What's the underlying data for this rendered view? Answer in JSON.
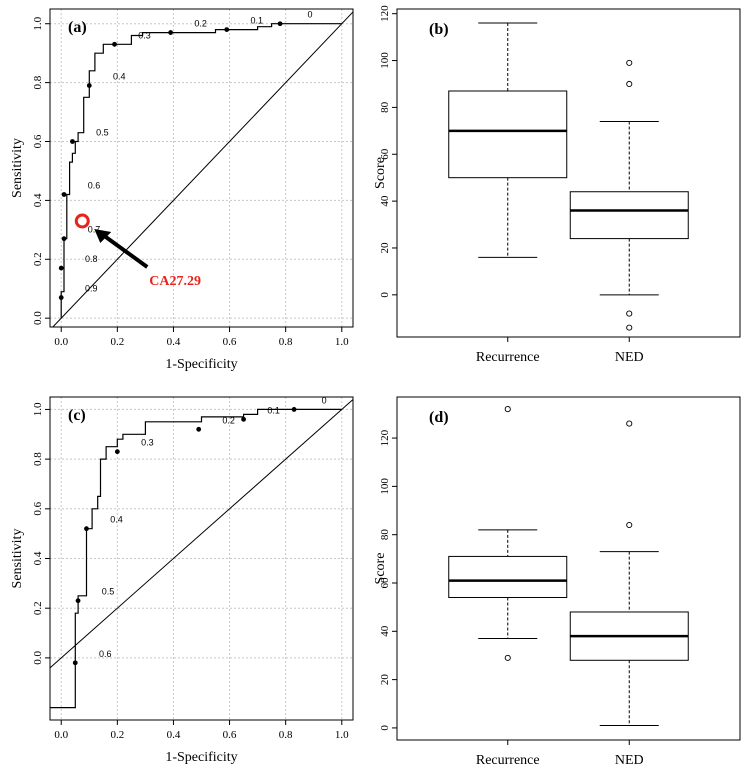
{
  "chart_data": [
    {
      "id": "a",
      "type": "line",
      "panel_label": "(a)",
      "xlabel": "1-Specificity",
      "ylabel": "Sensitivity",
      "xlim": [
        -0.04,
        1.04
      ],
      "ylim": [
        -0.03,
        1.05
      ],
      "xticks": [
        0.0,
        0.2,
        0.4,
        0.6,
        0.8,
        1.0
      ],
      "yticks": [
        0.0,
        0.2,
        0.4,
        0.6,
        0.8,
        1.0
      ],
      "xtick_labels": [
        "0.0",
        "0.2",
        "0.4",
        "0.6",
        "0.8",
        "1.0"
      ],
      "ytick_labels": [
        "0.0",
        "0.2",
        "0.4",
        "0.6",
        "0.8",
        "1.0"
      ],
      "grid": true,
      "roc": {
        "x": [
          0,
          0,
          0.01,
          0.01,
          0.02,
          0.02,
          0.03,
          0.03,
          0.04,
          0.04,
          0.05,
          0.05,
          0.06,
          0.06,
          0.08,
          0.08,
          0.1,
          0.1,
          0.12,
          0.12,
          0.15,
          0.15,
          0.25,
          0.25,
          0.29,
          0.29,
          0.55,
          0.55,
          0.7,
          0.7,
          0.75,
          0.75,
          0.95,
          0.95,
          1.0
        ],
        "y": [
          0,
          0.09,
          0.09,
          0.27,
          0.27,
          0.42,
          0.42,
          0.53,
          0.53,
          0.56,
          0.56,
          0.6,
          0.6,
          0.63,
          0.63,
          0.75,
          0.75,
          0.84,
          0.84,
          0.9,
          0.9,
          0.93,
          0.93,
          0.96,
          0.96,
          0.97,
          0.97,
          0.98,
          0.98,
          0.99,
          0.99,
          1.0,
          1.0,
          1.0,
          1.0
        ]
      },
      "threshold_points": [
        {
          "x": 0.0,
          "y": 0.07,
          "label": "0.9"
        },
        {
          "x": 0.0,
          "y": 0.17,
          "label": "0.8"
        },
        {
          "x": 0.01,
          "y": 0.27,
          "label": "0.7"
        },
        {
          "x": 0.01,
          "y": 0.42,
          "label": "0.6"
        },
        {
          "x": 0.04,
          "y": 0.6,
          "label": "0.5"
        },
        {
          "x": 0.1,
          "y": 0.79,
          "label": "0.4"
        },
        {
          "x": 0.19,
          "y": 0.93,
          "label": "0.3"
        },
        {
          "x": 0.39,
          "y": 0.97,
          "label": "0.2"
        },
        {
          "x": 0.59,
          "y": 0.98,
          "label": "0.1"
        },
        {
          "x": 0.78,
          "y": 1.0,
          "label": "0"
        }
      ],
      "annotation": {
        "text": "CA27.29",
        "x": 0.075,
        "y": 0.33,
        "color": "#e8231b"
      }
    },
    {
      "id": "b",
      "type": "boxplot",
      "panel_label": "(b)",
      "xlabel": "",
      "ylabel": "Score",
      "ylim": [
        -18,
        122
      ],
      "yticks": [
        0,
        20,
        40,
        60,
        80,
        100,
        120
      ],
      "ytick_labels": [
        "0",
        "20",
        "40",
        "60",
        "80",
        "100",
        "120"
      ],
      "categories": [
        "Recurrence",
        "NED"
      ],
      "boxes": [
        {
          "min": 16,
          "q1": 50,
          "median": 70,
          "q3": 87,
          "max": 116,
          "outliers": []
        },
        {
          "min": 0,
          "q1": 24,
          "median": 36,
          "q3": 44,
          "max": 74,
          "outliers": [
            99,
            90,
            -8,
            -14
          ]
        }
      ]
    },
    {
      "id": "c",
      "type": "line",
      "panel_label": "(c)",
      "xlabel": "1-Specificity",
      "ylabel": "Sensitivity",
      "xlim": [
        -0.04,
        1.04
      ],
      "ylim": [
        -0.25,
        1.05
      ],
      "xticks": [
        0.0,
        0.2,
        0.4,
        0.6,
        0.8,
        1.0
      ],
      "yticks": [
        0.0,
        0.2,
        0.4,
        0.6,
        0.8,
        1.0
      ],
      "xtick_labels": [
        "0.0",
        "0.2",
        "0.4",
        "0.6",
        "0.8",
        "1.0"
      ],
      "ytick_labels": [
        "0.0",
        "0.2",
        "0.4",
        "0.6",
        "0.8",
        "1.0"
      ],
      "grid": true,
      "roc": {
        "x": [
          -0.04,
          0.05,
          0.05,
          0.06,
          0.06,
          0.09,
          0.09,
          0.11,
          0.11,
          0.13,
          0.13,
          0.14,
          0.14,
          0.16,
          0.16,
          0.2,
          0.2,
          0.22,
          0.22,
          0.3,
          0.3,
          0.5,
          0.5,
          0.65,
          0.65,
          0.7,
          0.7,
          1.0
        ],
        "y": [
          -0.2,
          -0.2,
          0.18,
          0.18,
          0.25,
          0.25,
          0.52,
          0.52,
          0.6,
          0.6,
          0.65,
          0.65,
          0.8,
          0.8,
          0.85,
          0.85,
          0.88,
          0.88,
          0.9,
          0.9,
          0.95,
          0.95,
          0.97,
          0.97,
          0.98,
          0.98,
          1.0,
          1.0
        ]
      },
      "threshold_points": [
        {
          "x": 0.05,
          "y": -0.02,
          "label": "0.6"
        },
        {
          "x": 0.06,
          "y": 0.23,
          "label": "0.5"
        },
        {
          "x": 0.09,
          "y": 0.52,
          "label": "0.4"
        },
        {
          "x": 0.2,
          "y": 0.83,
          "label": "0.3"
        },
        {
          "x": 0.49,
          "y": 0.92,
          "label": "0.2"
        },
        {
          "x": 0.65,
          "y": 0.96,
          "label": "0.1"
        },
        {
          "x": 0.83,
          "y": 1.0,
          "label": "0"
        }
      ]
    },
    {
      "id": "d",
      "type": "boxplot",
      "panel_label": "(d)",
      "xlabel": "",
      "ylabel": "Score",
      "ylim": [
        -5,
        137
      ],
      "yticks": [
        0,
        20,
        40,
        60,
        80,
        100,
        120
      ],
      "ytick_labels": [
        "0",
        "20",
        "40",
        "60",
        "80",
        "100",
        "120"
      ],
      "categories": [
        "Recurrence",
        "NED"
      ],
      "boxes": [
        {
          "min": 37,
          "q1": 54,
          "median": 61,
          "q3": 71,
          "max": 82,
          "outliers": [
            132,
            29
          ]
        },
        {
          "min": 1,
          "q1": 28,
          "median": 38,
          "q3": 48,
          "max": 73,
          "outliers": [
            126,
            84
          ]
        }
      ]
    }
  ]
}
